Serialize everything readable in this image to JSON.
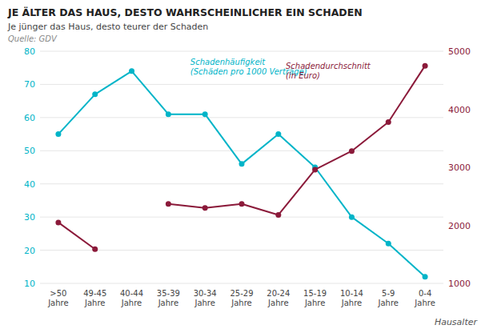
{
  "chart_data": {
    "type": "line",
    "title": "JE ÄLTER DAS HAUS, DESTO WAHRSCHEINLICHER EIN SCHADEN",
    "subtitle": "Je jünger das Haus, desto teurer der Schaden",
    "source": "Quelle: GDV",
    "x_label": "Hausalter",
    "categories": [
      ">50\nJahre",
      "49-45\nJahre",
      "40-44\nJahre",
      "35-39\nJahre",
      "30-34\nJahre",
      "25-29\nJahre",
      "20-24\nJahre",
      "15-19\nJahre",
      "10-14\nJahre",
      "5-9\nJahre",
      "0-4\nJahre"
    ],
    "series": [
      {
        "name": "Schadenhäufigkeit\n(Schäden pro 1000 Verträge)",
        "color": "#00b4c8",
        "marker": "circle",
        "values": [
          55,
          67,
          74,
          61,
          61,
          46,
          55,
          45,
          30,
          22,
          12
        ]
      },
      {
        "name": "Schadendurchschnitt\n(in Euro)",
        "color": "#8b1a3a",
        "marker": "circle",
        "axis": "y2",
        "values": [
          2050,
          1590,
          null,
          2370,
          2300,
          2370,
          2180,
          2960,
          3280,
          3780,
          4750
        ]
      }
    ],
    "ylim": [
      10,
      80
    ],
    "yticks": [
      10,
      20,
      30,
      40,
      50,
      60,
      70,
      80
    ],
    "y2lim": [
      1000,
      5000
    ],
    "y2ticks": [
      1000,
      2000,
      3000,
      4000,
      5000
    ],
    "grid": true
  }
}
